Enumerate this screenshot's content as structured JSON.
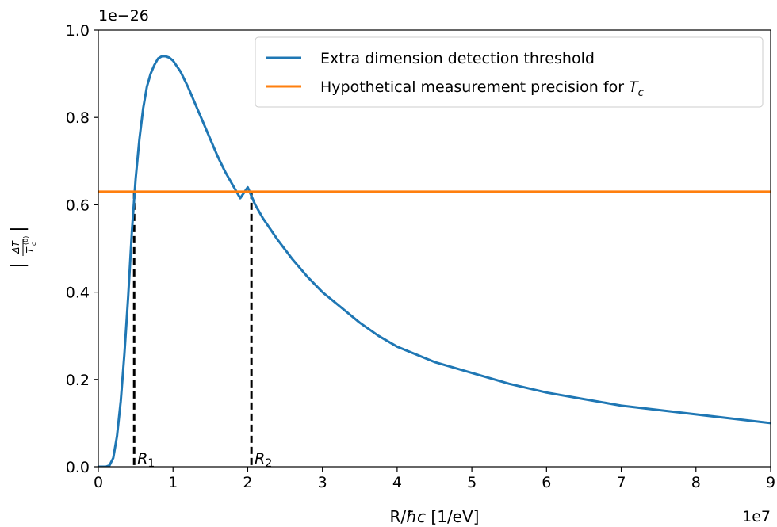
{
  "chart_data": {
    "type": "line",
    "xlabel_prefix": "R/",
    "xlabel_math": "ħc",
    "xlabel_suffix": " [1/eV]",
    "ylabel": "|ΔT / T_c^(0)|",
    "ylabel_num": "ΔT",
    "ylabel_den_main": "T",
    "ylabel_den_sub": "c",
    "ylabel_den_sup": "(0)",
    "x_offset_label": "1e7",
    "y_offset_label": "1e−26",
    "xlim": [
      0,
      9
    ],
    "ylim": [
      0,
      1.0
    ],
    "x_ticks": [
      0,
      1,
      2,
      3,
      4,
      5,
      6,
      7,
      8,
      9
    ],
    "x_tick_labels": [
      "0",
      "1",
      "2",
      "3",
      "4",
      "5",
      "6",
      "7",
      "8",
      "9"
    ],
    "y_ticks": [
      0,
      0.2,
      0.4,
      0.6,
      0.8,
      1.0
    ],
    "y_tick_labels": [
      "0.0",
      "0.2",
      "0.4",
      "0.6",
      "0.8",
      "1.0"
    ],
    "grid": false,
    "legend_position": "top-right",
    "series": [
      {
        "name": "Extra dimension detection threshold",
        "color": "#1f77b4",
        "x": [
          0.0,
          0.1,
          0.15,
          0.2,
          0.25,
          0.3,
          0.35,
          0.4,
          0.45,
          0.5,
          0.55,
          0.6,
          0.65,
          0.7,
          0.75,
          0.8,
          0.85,
          0.9,
          0.95,
          1.0,
          1.1,
          1.2,
          1.3,
          1.4,
          1.5,
          1.6,
          1.7,
          1.8,
          1.9,
          2.0,
          2.1,
          2.2,
          2.4,
          2.6,
          2.8,
          3.0,
          3.25,
          3.5,
          3.75,
          4.0,
          4.5,
          5.0,
          5.5,
          6.0,
          6.5,
          7.0,
          7.5,
          8.0,
          8.5,
          9.0
        ],
        "y": [
          0.0,
          0.0,
          0.003,
          0.02,
          0.07,
          0.15,
          0.26,
          0.39,
          0.54,
          0.66,
          0.75,
          0.82,
          0.87,
          0.9,
          0.92,
          0.935,
          0.94,
          0.94,
          0.937,
          0.93,
          0.905,
          0.87,
          0.83,
          0.79,
          0.75,
          0.71,
          0.675,
          0.645,
          0.615,
          0.64,
          0.6,
          0.57,
          0.52,
          0.475,
          0.435,
          0.4,
          0.365,
          0.33,
          0.3,
          0.275,
          0.24,
          0.215,
          0.19,
          0.17,
          0.155,
          0.14,
          0.13,
          0.12,
          0.11,
          0.1
        ]
      },
      {
        "name": "Hypothetical measurement precision for ",
        "name_math": "T",
        "name_math_sub": "c",
        "color": "#ff7f0e",
        "x": [
          0,
          9
        ],
        "y": [
          0.63,
          0.63
        ]
      }
    ],
    "markers": [
      {
        "label": "R",
        "sub": "1",
        "x": 0.48,
        "y": 0.63
      },
      {
        "label": "R",
        "sub": "2",
        "x": 2.05,
        "y": 0.63
      }
    ]
  }
}
